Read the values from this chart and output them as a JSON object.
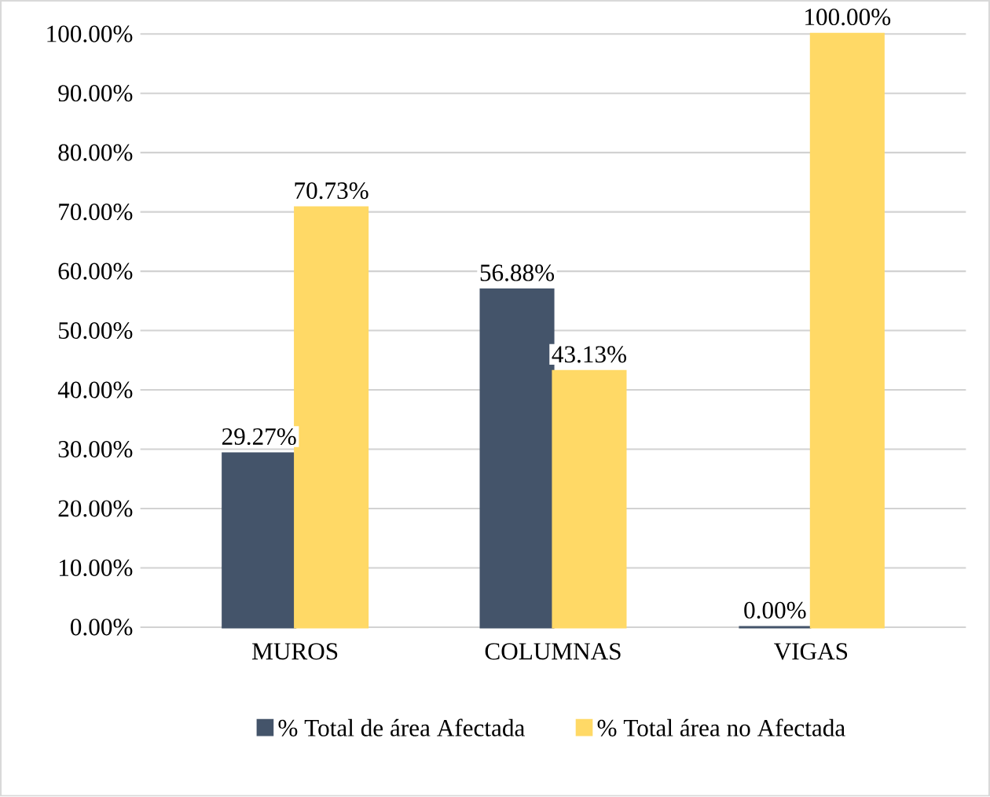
{
  "chart_data": {
    "type": "bar",
    "categories": [
      "MUROS",
      "COLUMNAS",
      "VIGAS"
    ],
    "series": [
      {
        "name": "% Total de área Afectada",
        "color": "#44546a",
        "values": [
          29.27,
          56.88,
          0.0
        ],
        "value_labels": [
          "29.27%",
          "56.88%",
          "0.00%"
        ]
      },
      {
        "name": "% Total área no Afectada",
        "color": "#ffd966",
        "values": [
          70.73,
          43.13,
          100.0
        ],
        "value_labels": [
          "70.73%",
          "43.13%",
          "100.00%"
        ]
      }
    ],
    "ylim": [
      0,
      100
    ],
    "yticks": [
      {
        "value": 0,
        "label": "0.00%"
      },
      {
        "value": 10,
        "label": "10.00%"
      },
      {
        "value": 20,
        "label": "20.00%"
      },
      {
        "value": 30,
        "label": "30.00%"
      },
      {
        "value": 40,
        "label": "40.00%"
      },
      {
        "value": 50,
        "label": "50.00%"
      },
      {
        "value": 60,
        "label": "60.00%"
      },
      {
        "value": 70,
        "label": "70.00%"
      },
      {
        "value": 80,
        "label": "80.00%"
      },
      {
        "value": 90,
        "label": "90.00%"
      },
      {
        "value": 100,
        "label": "100.00%"
      }
    ],
    "grid": "y",
    "legend": "bottom"
  }
}
